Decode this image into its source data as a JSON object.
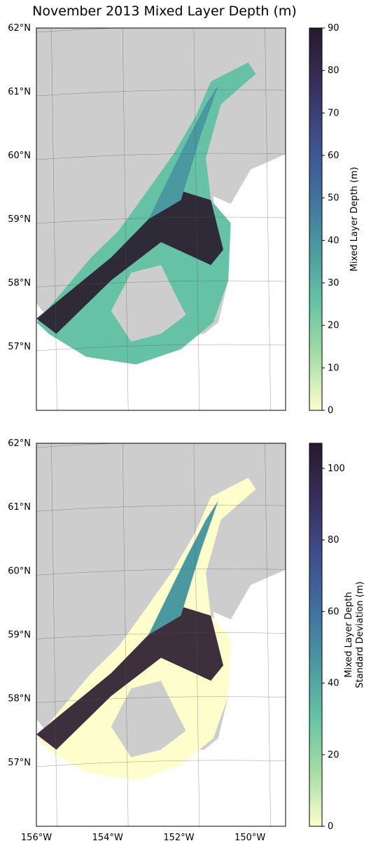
{
  "chart_data": [
    {
      "type": "heatmap",
      "title": "November 2013 Mixed Layer Depth (m)",
      "colorbar_label": "Mixed Layer Depth (m)",
      "colorbar_label_lines": [
        "Mixed Layer Depth (m)"
      ],
      "colorbar_range": [
        0,
        90
      ],
      "colorbar_ticks": [
        {
          "value": 0,
          "label": "0"
        },
        {
          "value": 10,
          "label": "10"
        },
        {
          "value": 20,
          "label": "20"
        },
        {
          "value": 30,
          "label": "30"
        },
        {
          "value": 40,
          "label": "40"
        },
        {
          "value": 50,
          "label": "50"
        },
        {
          "value": 60,
          "label": "60"
        },
        {
          "value": 70,
          "label": "70"
        },
        {
          "value": 80,
          "label": "80"
        },
        {
          "value": 90,
          "label": "90"
        }
      ],
      "lat_ticks": [
        {
          "value": 62,
          "label": "62°N"
        },
        {
          "value": 61,
          "label": "61°N"
        },
        {
          "value": 60,
          "label": "60°N"
        },
        {
          "value": 59,
          "label": "59°N"
        },
        {
          "value": 58,
          "label": "58°N"
        },
        {
          "value": 57,
          "label": "57°N"
        }
      ],
      "lon_ticks": [],
      "lat_range": [
        56,
        62
      ],
      "lon_range": [
        -156,
        -149
      ],
      "colormap": "deep (yellow to dark purple)",
      "grid": true
    },
    {
      "type": "heatmap",
      "title": "",
      "colorbar_label": "Mixed Layer Depth Standard Deviation (m)",
      "colorbar_label_lines": [
        "Mixed Layer Depth",
        "Standard Deviation (m)"
      ],
      "colorbar_range": [
        0,
        107
      ],
      "colorbar_ticks": [
        {
          "value": 0,
          "label": "0"
        },
        {
          "value": 20,
          "label": "20"
        },
        {
          "value": 40,
          "label": "40"
        },
        {
          "value": 60,
          "label": "60"
        },
        {
          "value": 80,
          "label": "80"
        },
        {
          "value": 100,
          "label": "100"
        }
      ],
      "lat_ticks": [
        {
          "value": 62,
          "label": "62°N"
        },
        {
          "value": 61,
          "label": "61°N"
        },
        {
          "value": 60,
          "label": "60°N"
        },
        {
          "value": 59,
          "label": "59°N"
        },
        {
          "value": 58,
          "label": "58°N"
        },
        {
          "value": 57,
          "label": "57°N"
        }
      ],
      "lon_ticks": [
        {
          "value": -156,
          "label": "156°W"
        },
        {
          "value": -154,
          "label": "154°W"
        },
        {
          "value": -152,
          "label": "152°W"
        },
        {
          "value": -150,
          "label": "150°W"
        }
      ],
      "lat_range": [
        56,
        62
      ],
      "lon_range": [
        -156,
        -149
      ],
      "colormap": "deep (yellow to dark purple)",
      "grid": true
    }
  ],
  "colors": {
    "land": "#cdcdcd",
    "ocean_background": "#ffffff",
    "deep_ramp": [
      "#fdfecc",
      "#a5dea5",
      "#65c2a4",
      "#4a98a0",
      "#3f6fa0",
      "#3e4d8b",
      "#372e5a",
      "#281a2c"
    ]
  }
}
